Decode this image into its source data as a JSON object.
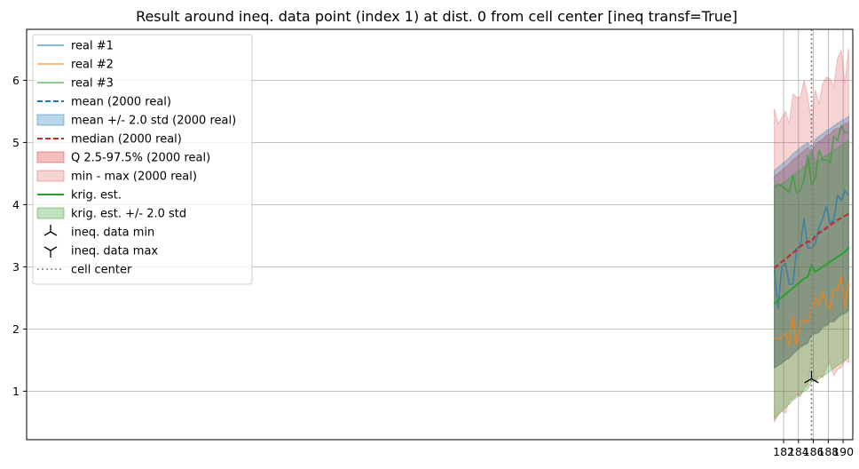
{
  "chart_data": {
    "type": "line",
    "title": "Result around ineq. data point (index 1) at dist. 0 from cell center [ineq transf=True]",
    "xlabel": "",
    "ylabel": "",
    "xlim": [
      80.2,
      191.3
    ],
    "ylim": [
      0.22,
      6.82
    ],
    "grid": true,
    "legend_position": "upper-left",
    "x_ticks": [
      182,
      184,
      186,
      188,
      190
    ],
    "y_ticks": [
      1,
      2,
      3,
      4,
      5,
      6
    ],
    "x": [
      180.75,
      181.25,
      181.75,
      182.25,
      182.75,
      183.25,
      183.75,
      184.25,
      184.75,
      185.25,
      185.75,
      186.25,
      186.75,
      187.25,
      187.75,
      188.25,
      188.75,
      189.25,
      189.75,
      190.25,
      190.75
    ],
    "cell_center_x": 185.75,
    "series": [
      {
        "name": "real #1",
        "kind": "line",
        "color": "#1f77b4",
        "values": [
          2.95,
          2.33,
          3.0,
          3.05,
          2.72,
          2.72,
          3.3,
          3.33,
          3.78,
          3.3,
          3.3,
          3.37,
          3.63,
          3.78,
          3.98,
          3.7,
          3.75,
          4.15,
          4.07,
          4.22,
          4.15
        ]
      },
      {
        "name": "real #2",
        "kind": "line",
        "color": "#ff7f0e",
        "values": [
          1.85,
          1.85,
          1.86,
          1.95,
          1.73,
          2.2,
          1.73,
          2.1,
          2.14,
          2.12,
          2.27,
          2.5,
          2.38,
          2.59,
          2.42,
          2.31,
          2.64,
          2.62,
          2.85,
          2.34,
          2.75
        ]
      },
      {
        "name": "real #3",
        "kind": "line",
        "color": "#2ca02c",
        "values": [
          4.28,
          4.33,
          4.3,
          4.25,
          4.2,
          4.47,
          4.19,
          4.23,
          4.4,
          4.8,
          4.32,
          4.42,
          4.88,
          4.72,
          4.72,
          4.67,
          5.1,
          5.03,
          5.27,
          5.15,
          5.18
        ]
      },
      {
        "name": "mean (2000 real)",
        "kind": "dashed",
        "color": "#1f77b4",
        "values": [
          2.98,
          3.03,
          3.08,
          3.12,
          3.17,
          3.22,
          3.28,
          3.33,
          3.36,
          3.4,
          3.4,
          3.49,
          3.54,
          3.57,
          3.62,
          3.67,
          3.71,
          3.75,
          3.79,
          3.82,
          3.85
        ]
      },
      {
        "name": "mean +/- 2.0 std (2000 real)",
        "kind": "band",
        "color": "#1f77b4",
        "lower": [
          1.37,
          1.41,
          1.45,
          1.5,
          1.54,
          1.6,
          1.65,
          1.7,
          1.74,
          1.77,
          1.9,
          1.92,
          1.94,
          2.02,
          2.05,
          2.11,
          2.13,
          2.18,
          2.22,
          2.25,
          2.29
        ],
        "upper": [
          4.55,
          4.6,
          4.65,
          4.7,
          4.75,
          4.82,
          4.86,
          4.92,
          4.96,
          5.0,
          4.9,
          5.05,
          5.1,
          5.14,
          5.19,
          5.22,
          5.27,
          5.31,
          5.35,
          5.38,
          5.42
        ]
      },
      {
        "name": "median (2000 real)",
        "kind": "dashed",
        "color": "#d62728",
        "values": [
          2.98,
          3.03,
          3.08,
          3.12,
          3.18,
          3.22,
          3.27,
          3.33,
          3.37,
          3.41,
          3.41,
          3.5,
          3.55,
          3.58,
          3.63,
          3.67,
          3.71,
          3.75,
          3.79,
          3.82,
          3.85
        ]
      },
      {
        "name": "Q 2.5-97.5% (2000 real)",
        "kind": "band",
        "color": "#d62728",
        "lower": [
          1.38,
          1.42,
          1.45,
          1.5,
          1.53,
          1.6,
          1.66,
          1.72,
          1.75,
          1.78,
          1.92,
          1.93,
          1.95,
          2.06,
          2.06,
          2.13,
          2.11,
          2.18,
          2.25,
          2.26,
          2.3
        ],
        "upper": [
          4.45,
          4.5,
          4.55,
          4.6,
          4.65,
          4.72,
          4.76,
          4.82,
          4.87,
          4.92,
          4.82,
          4.97,
          5.02,
          5.05,
          5.12,
          5.13,
          5.2,
          5.23,
          5.24,
          5.3,
          5.32
        ]
      },
      {
        "name": "min - max (2000 real)",
        "kind": "band",
        "color": "#d62728",
        "lower": [
          0.5,
          0.62,
          0.68,
          0.65,
          0.85,
          0.88,
          0.95,
          0.91,
          1.05,
          1.1,
          1.5,
          1.15,
          1.25,
          1.22,
          1.38,
          1.47,
          1.25,
          1.35,
          1.38,
          1.5,
          1.46
        ],
        "upper": [
          5.55,
          5.3,
          5.4,
          5.5,
          5.3,
          5.78,
          5.73,
          5.73,
          6.0,
          5.75,
          5.3,
          5.85,
          5.62,
          5.95,
          6.05,
          6.02,
          5.9,
          6.35,
          6.48,
          5.95,
          6.52
        ]
      },
      {
        "name": "krig. est.",
        "kind": "line",
        "color": "#2ca02c",
        "values": [
          2.41,
          2.46,
          2.51,
          2.56,
          2.61,
          2.66,
          2.71,
          2.76,
          2.81,
          2.84,
          3.03,
          2.92,
          2.96,
          3.0,
          3.04,
          3.08,
          3.12,
          3.16,
          3.2,
          3.24,
          3.32
        ]
      },
      {
        "name": "krig. est. +/- 2.0 std",
        "kind": "band",
        "color": "#2ca02c",
        "lower": [
          0.55,
          0.62,
          0.68,
          0.74,
          0.79,
          0.85,
          0.9,
          0.95,
          1.0,
          1.03,
          1.15,
          1.17,
          1.2,
          1.24,
          1.28,
          1.32,
          1.37,
          1.41,
          1.45,
          1.5,
          1.55
        ],
        "upper": [
          4.27,
          4.3,
          4.34,
          4.38,
          4.43,
          4.47,
          4.52,
          4.56,
          4.61,
          4.65,
          4.9,
          4.68,
          4.72,
          4.76,
          4.8,
          4.84,
          4.87,
          4.91,
          4.95,
          4.99,
          5.05
        ]
      },
      {
        "name": "ineq. data min",
        "kind": "marker-min",
        "color": "#000000",
        "points": [
          {
            "x": 185.75,
            "y": 1.2
          }
        ]
      },
      {
        "name": "ineq. data max",
        "kind": "marker-max",
        "color": "#000000",
        "points": []
      },
      {
        "name": "cell center",
        "kind": "vline-dotted",
        "color": "#7f7f7f",
        "x": 185.75
      }
    ]
  }
}
